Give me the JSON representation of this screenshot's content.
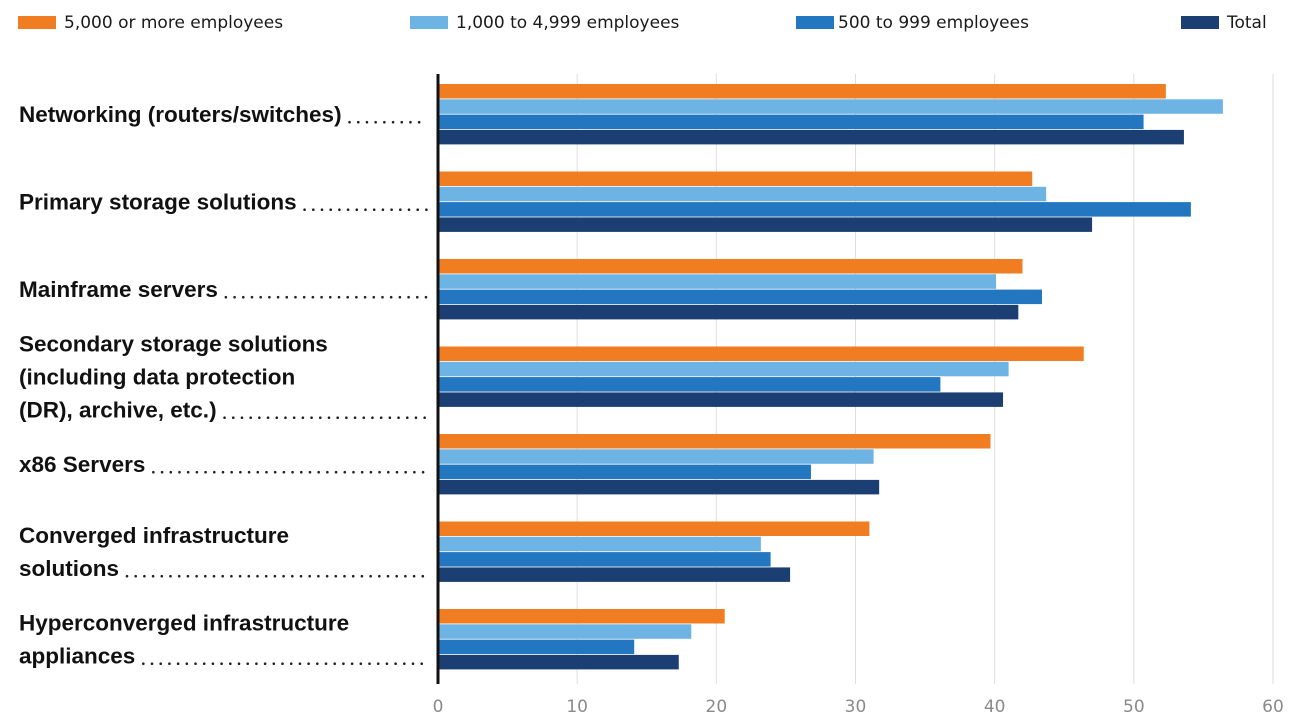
{
  "chart_data": {
    "type": "bar",
    "orientation": "horizontal",
    "categories": [
      [
        "Networking (routers/switches)"
      ],
      [
        "Primary storage solutions"
      ],
      [
        "Mainframe servers"
      ],
      [
        "Secondary storage solutions",
        "(including data protection",
        "(DR), archive, etc.)"
      ],
      [
        "x86 Servers"
      ],
      [
        "Converged infrastructure",
        "solutions"
      ],
      [
        "Hyperconverged infrastructure",
        "appliances"
      ]
    ],
    "series": [
      {
        "name": "5,000 or more employees",
        "color": "#f07d22",
        "values": [
          52.3,
          42.7,
          42.0,
          46.4,
          39.7,
          31.0,
          20.6
        ]
      },
      {
        "name": "1,000 to 4,999 employees",
        "color": "#6db3e4",
        "values": [
          56.4,
          43.7,
          40.1,
          41.0,
          31.3,
          23.2,
          18.2
        ]
      },
      {
        "name": "500 to 999 employees",
        "color": "#2277c0",
        "values": [
          50.7,
          54.1,
          43.4,
          36.1,
          26.8,
          23.9,
          14.1
        ]
      },
      {
        "name": "Total",
        "color": "#1b3f72",
        "values": [
          53.6,
          47.0,
          41.7,
          40.6,
          31.7,
          25.3,
          17.3
        ]
      }
    ],
    "x_ticks": [
      "0",
      "10",
      "20",
      "30",
      "40",
      "50",
      "60"
    ],
    "xlim": [
      0,
      60
    ],
    "grid": true,
    "legend_position": "top"
  }
}
